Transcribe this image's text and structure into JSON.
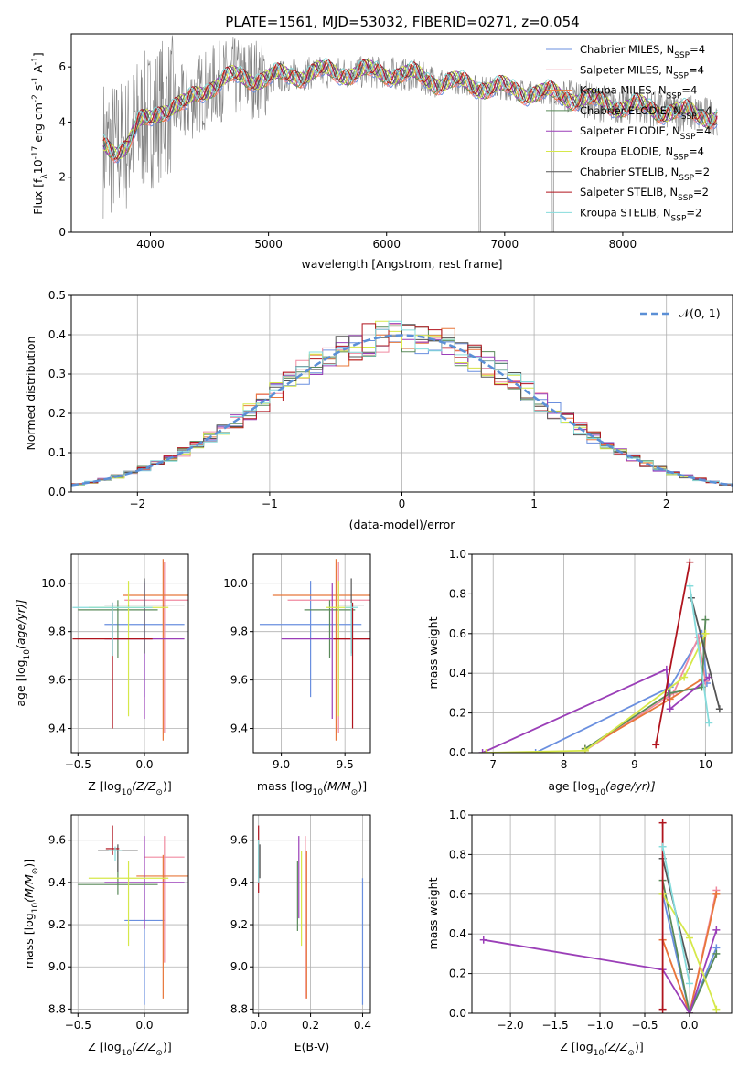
{
  "title": "PLATE=1561, MJD=53032, FIBERID=0271, z=0.054",
  "colors": {
    "chabrier_miles": "#6a8fdf",
    "salpeter_miles": "#f08aa0",
    "kroupa_miles": "#e8773a",
    "chabrier_elodie": "#5a8a5a",
    "salpeter_elodie": "#9b3fb8",
    "kroupa_elodie": "#d6e84a",
    "chabrier_stelib": "#555555",
    "salpeter_stelib": "#b0141e",
    "kroupa_stelib": "#86dcdc",
    "data": "#808080",
    "gaussian": "#5b8fd6",
    "grid": "#b0b0b0"
  },
  "chart_data": [
    {
      "id": "spectrum",
      "type": "line",
      "xlabel": "wavelength [Angstrom, rest frame]",
      "ylabel_main": "Flux [f",
      "ylabel_sub": "λ",
      "ylabel_rest": "10",
      "ylabel_sup1": "-17",
      "ylabel_tail": " erg cm",
      "ylabel_sup2": "-2",
      "ylabel_tail2": " s",
      "ylabel_sup3": "-1",
      "ylabel_tail3": " A",
      "ylabel_sup4": "-1",
      "ylabel_end": "]",
      "xlim": [
        3330,
        8930
      ],
      "ylim": [
        0,
        7.2
      ],
      "xticks": [
        4000,
        5000,
        6000,
        7000,
        8000
      ],
      "yticks": [
        0,
        2,
        4,
        6
      ],
      "grid": false,
      "legend_position": "upper right",
      "legend": [
        {
          "label": "Chabrier MILES, N",
          "sub": "SSP",
          "eq": "=4",
          "color": "#6a8fdf"
        },
        {
          "label": "Salpeter MILES, N",
          "sub": "SSP",
          "eq": "=4",
          "color": "#f08aa0"
        },
        {
          "label": "Kroupa MILES, N",
          "sub": "SSP",
          "eq": "=4",
          "color": "#e8773a"
        },
        {
          "label": "Chabrier ELODIE, N",
          "sub": "SSP",
          "eq": "=4",
          "color": "#5a8a5a"
        },
        {
          "label": "Salpeter ELODIE, N",
          "sub": "SSP",
          "eq": "=4",
          "color": "#9b3fb8"
        },
        {
          "label": "Kroupa ELODIE, N",
          "sub": "SSP",
          "eq": "=4",
          "color": "#d6e84a"
        },
        {
          "label": "Chabrier STELIB, N",
          "sub": "SSP",
          "eq": "=2",
          "color": "#555555"
        },
        {
          "label": "Salpeter STELIB, N",
          "sub": "SSP",
          "eq": "=2",
          "color": "#b0141e"
        },
        {
          "label": "Kroupa STELIB, N",
          "sub": "SSP",
          "eq": "=2",
          "color": "#86dcdc"
        }
      ],
      "continuum": [
        [
          3600,
          3.1
        ],
        [
          3700,
          3.0
        ],
        [
          3800,
          3.2
        ],
        [
          3900,
          3.9
        ],
        [
          4000,
          4.1
        ],
        [
          4100,
          4.5
        ],
        [
          4200,
          4.6
        ],
        [
          4300,
          4.6
        ],
        [
          4400,
          5.0
        ],
        [
          4500,
          5.3
        ],
        [
          4600,
          5.5
        ],
        [
          4700,
          5.6
        ],
        [
          4800,
          5.6
        ],
        [
          4900,
          5.6
        ],
        [
          5000,
          5.6
        ],
        [
          5200,
          5.7
        ],
        [
          5400,
          5.8
        ],
        [
          5600,
          5.8
        ],
        [
          5800,
          5.8
        ],
        [
          6000,
          5.8
        ],
        [
          6200,
          5.7
        ],
        [
          6400,
          5.5
        ],
        [
          6600,
          5.4
        ],
        [
          6800,
          5.3
        ],
        [
          7000,
          5.2
        ],
        [
          7200,
          5.1
        ],
        [
          7400,
          5.0
        ],
        [
          7600,
          4.9
        ],
        [
          7800,
          4.7
        ],
        [
          8000,
          4.6
        ],
        [
          8200,
          4.5
        ],
        [
          8400,
          4.4
        ],
        [
          8600,
          4.3
        ],
        [
          8800,
          4.2
        ]
      ]
    },
    {
      "id": "residuals",
      "type": "bar",
      "xlabel": "(data-model)/error",
      "ylabel": "Normed distribution",
      "xlim": [
        -2.5,
        2.5
      ],
      "ylim": [
        0,
        0.5
      ],
      "xticks": [
        -2,
        -1,
        0,
        1,
        2
      ],
      "yticks": [
        0.0,
        0.1,
        0.2,
        0.3,
        0.4,
        0.5
      ],
      "grid": true,
      "legend_position": "upper right",
      "legend_label": "𝒩(0, 1)",
      "gaussian": {
        "mean": 0,
        "sigma": 1
      }
    },
    {
      "id": "age_vs_Z",
      "type": "scatter",
      "xlabel": "Z [log",
      "xlabel_sub": "10",
      "xlabel_mid": "(Z/Z",
      "xlabel_sub2": "⊙",
      "xlabel_end": ")]",
      "ylabel": "age  [log",
      "ylabel_sub": "10",
      "ylabel_end": "(age/yr)]",
      "xlim": [
        -0.55,
        0.33
      ],
      "ylim": [
        9.3,
        10.12
      ],
      "xticks": [
        -0.5,
        0.0
      ],
      "yticks": [
        9.4,
        9.6,
        9.8,
        10.0
      ],
      "grid": true
    },
    {
      "id": "age_vs_mass",
      "type": "scatter",
      "xlabel": "mass [log",
      "xlabel_sub": "10",
      "xlabel_mid": "(M/M",
      "xlabel_sub2": "⊙",
      "xlabel_end": ")]",
      "xlim": [
        8.78,
        9.7
      ],
      "ylim": [
        9.3,
        10.12
      ],
      "xticks": [
        9.0,
        9.5
      ],
      "yticks": [
        9.4,
        9.6,
        9.8,
        10.0
      ],
      "grid": true
    },
    {
      "id": "weight_vs_age",
      "type": "line",
      "xlabel": "age  [log",
      "xlabel_sub": "10",
      "xlabel_end": "(age/yr)]",
      "ylabel": "mass weight",
      "xlim": [
        6.7,
        10.37
      ],
      "ylim": [
        0,
        1.0
      ],
      "xticks": [
        7,
        8,
        9,
        10
      ],
      "yticks": [
        0.0,
        0.2,
        0.4,
        0.6,
        0.8,
        1.0
      ],
      "grid": true,
      "series": [
        {
          "color": "#6a8fdf",
          "points": [
            [
              7.6,
              0.0
            ],
            [
              9.5,
              0.33
            ],
            [
              9.95,
              0.6
            ],
            [
              10.02,
              0.35
            ]
          ]
        },
        {
          "color": "#f08aa0",
          "points": [
            [
              8.3,
              0.01
            ],
            [
              9.55,
              0.3
            ],
            [
              9.9,
              0.58
            ],
            [
              10.0,
              0.36
            ]
          ]
        },
        {
          "color": "#e8773a",
          "points": [
            [
              8.3,
              0.02
            ],
            [
              9.5,
              0.27
            ],
            [
              9.95,
              0.37
            ],
            [
              10.0,
              0.6
            ]
          ]
        },
        {
          "color": "#5a8a5a",
          "points": [
            [
              8.3,
              0.02
            ],
            [
              9.5,
              0.3
            ],
            [
              9.95,
              0.33
            ],
            [
              10.0,
              0.67
            ]
          ]
        },
        {
          "color": "#9b3fb8",
          "points": [
            [
              6.85,
              0.0
            ],
            [
              9.45,
              0.42
            ],
            [
              9.5,
              0.22
            ],
            [
              10.05,
              0.38
            ]
          ]
        },
        {
          "color": "#d6e84a",
          "points": [
            [
              6.9,
              0.0
            ],
            [
              8.3,
              0.01
            ],
            [
              9.7,
              0.38
            ],
            [
              10.0,
              0.6
            ]
          ]
        },
        {
          "color": "#555555",
          "points": [
            [
              9.8,
              0.78
            ],
            [
              10.2,
              0.22
            ]
          ]
        },
        {
          "color": "#b0141e",
          "points": [
            [
              9.3,
              0.04
            ],
            [
              9.78,
              0.96
            ]
          ]
        },
        {
          "color": "#86dcdc",
          "points": [
            [
              9.78,
              0.84
            ],
            [
              10.05,
              0.15
            ]
          ]
        }
      ]
    },
    {
      "id": "mass_vs_Z",
      "type": "scatter",
      "xlabel": "Z [log",
      "xlabel_sub": "10",
      "xlabel_mid": "(Z/Z",
      "xlabel_sub2": "⊙",
      "xlabel_end": ")]",
      "ylabel": "mass [log",
      "ylabel_sub": "10",
      "ylabel_mid": "(M/M",
      "ylabel_sub2": "⊙",
      "ylabel_end": ")]",
      "xlim": [
        -0.55,
        0.33
      ],
      "ylim": [
        8.78,
        9.72
      ],
      "xticks": [
        -0.5,
        0.0
      ],
      "yticks": [
        8.8,
        9.0,
        9.2,
        9.4,
        9.6
      ],
      "grid": true
    },
    {
      "id": "mass_vs_ebv",
      "type": "scatter",
      "xlabel": "E(B-V)",
      "xlim": [
        -0.02,
        0.43
      ],
      "ylim": [
        8.78,
        9.72
      ],
      "xticks": [
        0.0,
        0.2,
        0.4
      ],
      "yticks": [
        8.8,
        9.0,
        9.2,
        9.4,
        9.6
      ],
      "grid": true
    },
    {
      "id": "weight_vs_Z",
      "type": "line",
      "xlabel": "Z [log",
      "xlabel_sub": "10",
      "xlabel_mid": "(Z/Z",
      "xlabel_sub2": "⊙",
      "xlabel_end": ")]",
      "ylabel": "mass weight",
      "xlim": [
        -2.43,
        0.47
      ],
      "ylim": [
        0,
        1.0
      ],
      "xticks": [
        -2.0,
        -1.5,
        -1.0,
        -0.5,
        0.0
      ],
      "yticks": [
        0.0,
        0.2,
        0.4,
        0.6,
        0.8,
        1.0
      ],
      "grid": true,
      "series": [
        {
          "color": "#6a8fdf",
          "points": [
            [
              -0.3,
              0.6
            ],
            [
              0.0,
              0.0
            ],
            [
              0.3,
              0.33
            ]
          ]
        },
        {
          "color": "#f08aa0",
          "points": [
            [
              -0.3,
              0.37
            ],
            [
              0.0,
              0.0
            ],
            [
              0.3,
              0.62
            ]
          ]
        },
        {
          "color": "#e8773a",
          "points": [
            [
              -0.3,
              0.37
            ],
            [
              0.0,
              0.0
            ],
            [
              0.3,
              0.6
            ]
          ]
        },
        {
          "color": "#5a8a5a",
          "points": [
            [
              -0.3,
              0.67
            ],
            [
              0.0,
              0.0
            ],
            [
              0.3,
              0.3
            ]
          ]
        },
        {
          "color": "#9b3fb8",
          "points": [
            [
              -2.3,
              0.37
            ],
            [
              -0.3,
              0.22
            ],
            [
              0.0,
              0.0
            ],
            [
              0.3,
              0.42
            ]
          ]
        },
        {
          "color": "#d6e84a",
          "points": [
            [
              -0.3,
              0.6
            ],
            [
              0.0,
              0.38
            ],
            [
              0.3,
              0.02
            ]
          ]
        },
        {
          "color": "#555555",
          "points": [
            [
              -0.3,
              0.78
            ],
            [
              0.0,
              0.22
            ]
          ]
        },
        {
          "color": "#b0141e",
          "points": [
            [
              -0.3,
              0.96
            ],
            [
              -0.3,
              0.02
            ]
          ]
        },
        {
          "color": "#86dcdc",
          "points": [
            [
              -0.3,
              0.84
            ],
            [
              0.0,
              0.15
            ]
          ]
        }
      ]
    }
  ]
}
